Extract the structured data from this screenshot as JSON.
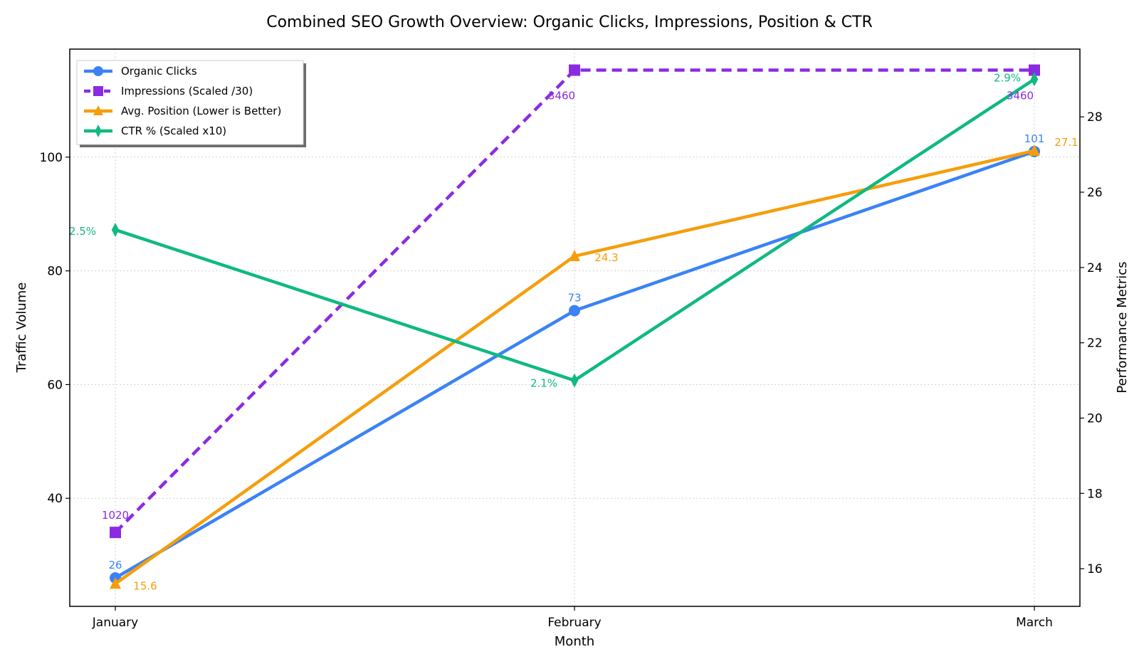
{
  "chart_data": {
    "type": "line",
    "title": "Combined SEO Growth Overview: Organic Clicks, Impressions, Position & CTR",
    "xlabel": "Month",
    "ylabel_left": "Traffic Volume",
    "ylabel_right": "Performance Metrics",
    "categories": [
      "January",
      "February",
      "March"
    ],
    "left_axis": {
      "ylim": [
        21,
        119
      ],
      "ticks": [
        40,
        60,
        80,
        100
      ]
    },
    "right_axis": {
      "ylim": [
        15,
        29.8
      ],
      "ticks": [
        16,
        18,
        20,
        22,
        24,
        26,
        28
      ]
    },
    "grid": true,
    "legend_position": "upper-left",
    "series": [
      {
        "name": "Organic Clicks",
        "axis": "left",
        "color": "#3b82f6",
        "marker": "circle",
        "linestyle": "solid",
        "values": [
          26,
          73,
          101
        ],
        "labels": [
          "26",
          "73",
          "101"
        ]
      },
      {
        "name": "Impressions (Scaled /30)",
        "axis": "left",
        "color": "#8a2be2",
        "marker": "square",
        "linestyle": "dashed",
        "values": [
          34,
          115.3,
          115.3
        ],
        "labels": [
          "1020",
          "3460",
          "3460"
        ]
      },
      {
        "name": "Avg. Position (Lower is Better)",
        "axis": "right",
        "color": "#f59e0b",
        "marker": "triangle",
        "linestyle": "solid",
        "values": [
          15.6,
          24.3,
          27.1
        ],
        "labels": [
          "15.6",
          "24.3",
          "27.1"
        ]
      },
      {
        "name": "CTR % (Scaled x10)",
        "axis": "right",
        "color": "#10b981",
        "marker": "diamond",
        "linestyle": "solid",
        "values": [
          25,
          21,
          29
        ],
        "labels": [
          "2.5%",
          "2.1%",
          "2.9%"
        ]
      }
    ]
  }
}
